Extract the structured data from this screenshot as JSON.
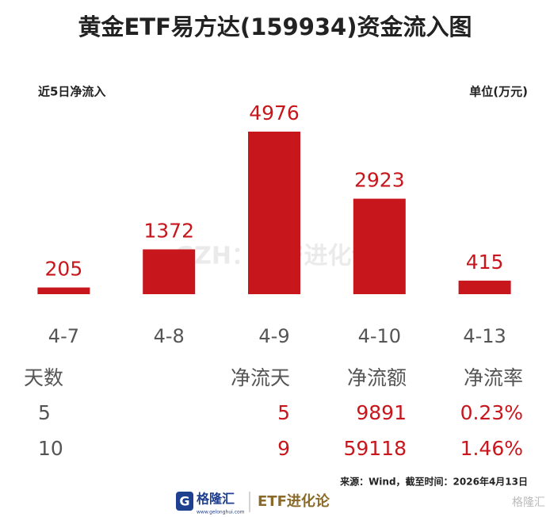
{
  "chart_data": {
    "type": "bar",
    "title": "黄金ETF易方达(159934)资金流入图",
    "subtitle": "近5日净流入",
    "unit": "单位(万元)",
    "categories": [
      "4-7",
      "4-8",
      "4-9",
      "4-10",
      "4-13"
    ],
    "values": [
      205,
      1372,
      4976,
      2923,
      415
    ],
    "color": "#c8161d",
    "ylim": [
      0,
      5000
    ],
    "watermark": "GZH：ETF进化论"
  },
  "table": {
    "header": [
      "天数",
      "净流天",
      "净流额",
      "净流率"
    ],
    "rows": [
      [
        "5",
        "5",
        "9891",
        "0.23%"
      ],
      [
        "10",
        "9",
        "59118",
        "1.46%"
      ]
    ]
  },
  "footer": {
    "source": "来源：Wind，截至时间：2026年4月13日",
    "brand": "格隆汇",
    "brand_url": "www.gelonghui.com",
    "account": "ETF进化论",
    "corner": "格隆汇"
  }
}
